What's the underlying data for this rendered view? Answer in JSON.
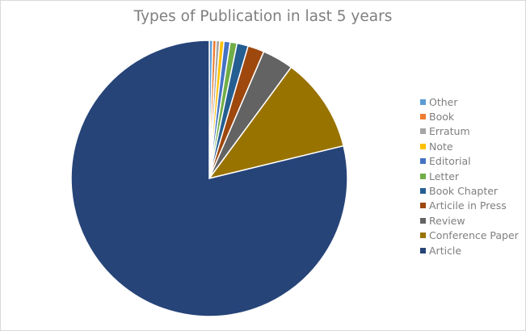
{
  "chart_data": {
    "type": "pie",
    "title": "Types of Publication in last 5 years",
    "start_angle_deg": 0,
    "direction": "clockwise",
    "slices": [
      {
        "label": "Other",
        "value": 0.4,
        "color": "#5b9bd5"
      },
      {
        "label": "Book",
        "value": 0.4,
        "color": "#ed7d31"
      },
      {
        "label": "Erratum",
        "value": 0.4,
        "color": "#a5a5a5"
      },
      {
        "label": "Note",
        "value": 0.5,
        "color": "#ffc000"
      },
      {
        "label": "Editorial",
        "value": 0.7,
        "color": "#4472c4"
      },
      {
        "label": "Letter",
        "value": 0.8,
        "color": "#70ad47"
      },
      {
        "label": "Book Chapter",
        "value": 1.3,
        "color": "#255e91"
      },
      {
        "label": "Articile in Press",
        "value": 1.9,
        "color": "#9e480e"
      },
      {
        "label": "Review",
        "value": 3.6,
        "color": "#636363"
      },
      {
        "label": "Conference Paper",
        "value": 11.0,
        "color": "#997300"
      },
      {
        "label": "Article",
        "value": 78.0,
        "color": "#264478"
      }
    ],
    "legend": "right"
  }
}
